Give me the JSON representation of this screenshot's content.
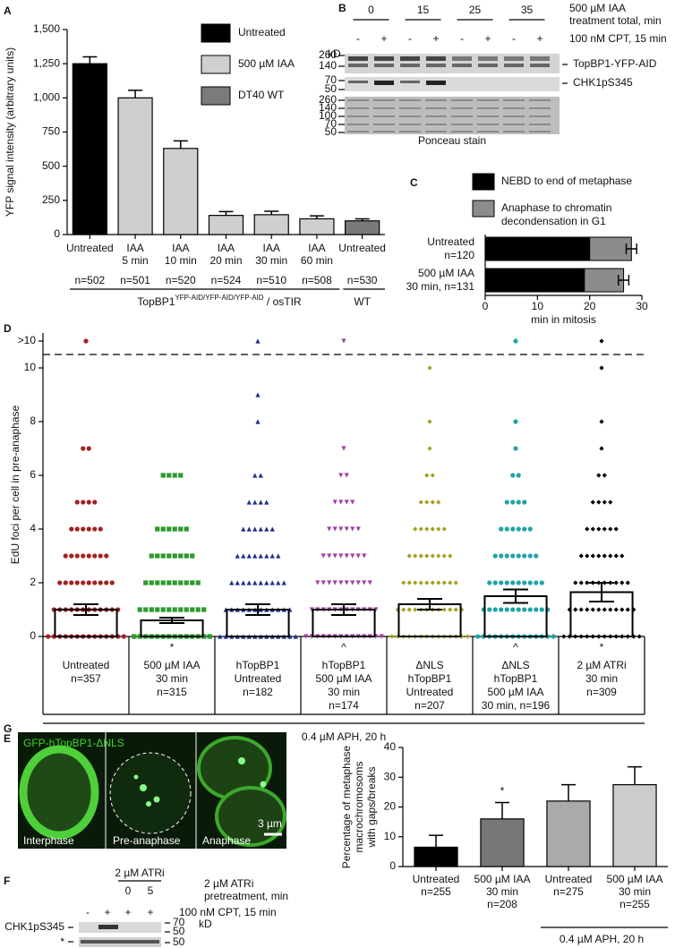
{
  "chart_data": [
    {
      "type": "bar",
      "panel": "A",
      "ylabel": "YFP signal intensity (arbitrary units)",
      "categories": [
        [
          "Untreated"
        ],
        [
          "IAA",
          "5 min"
        ],
        [
          "IAA",
          "10 min"
        ],
        [
          "IAA",
          "20 min"
        ],
        [
          "IAA",
          "30 min"
        ],
        [
          "IAA",
          "60 min"
        ],
        [
          "Untreated"
        ]
      ],
      "n_labels": [
        "n=502",
        "n=501",
        "n=520",
        "n=524",
        "n=510",
        "n=508",
        "n=530"
      ],
      "values": [
        1250,
        1000,
        630,
        140,
        145,
        115,
        100
      ],
      "errors": [
        50,
        55,
        55,
        28,
        25,
        22,
        15
      ],
      "colors": [
        "#000000",
        "#cfcfcf",
        "#cfcfcf",
        "#cfcfcf",
        "#cfcfcf",
        "#cfcfcf",
        "#7a7a7a"
      ],
      "legend": [
        {
          "name": "Untreated",
          "color": "#000000"
        },
        {
          "name": "500 µM IAA",
          "color": "#cfcfcf"
        },
        {
          "name": "DT40 WT",
          "color": "#7a7a7a"
        }
      ],
      "group_label": {
        "main": "TopBP1",
        "sup": "YFP-AID/YFP-AID/YFP-AID",
        "tail": " / osTIR",
        "wt": "WT"
      },
      "ylim": [
        0,
        1500
      ],
      "yticks": [
        0,
        250,
        500,
        750,
        {
          "value": 1000,
          "label": "1,000"
        },
        {
          "value": 1250,
          "label": "1,250"
        },
        {
          "value": 1500,
          "label": "1,500"
        }
      ]
    },
    {
      "type": "stacked-barh",
      "panel": "C",
      "categories": [
        [
          "Untreated",
          "n=120"
        ],
        [
          "500 µM IAA",
          "30 min, n=131"
        ]
      ],
      "series": [
        {
          "name": [
            "NEBD to end of metaphase"
          ],
          "color": "#000000",
          "values": [
            20,
            19
          ],
          "errors": [
            2.8,
            2.8
          ]
        },
        {
          "name": [
            "Anaphase to chromatin",
            "decondensation in G1"
          ],
          "color": "#8c8c8c",
          "values": [
            8,
            7.5
          ],
          "errors": [
            1,
            1
          ]
        }
      ],
      "xlim": [
        0,
        30
      ],
      "xticks": [
        0,
        10,
        20,
        30
      ],
      "xlabel": "min in mitosis"
    },
    {
      "type": "scatter-bar",
      "panel": "D",
      "ylabel": "EdU foci per cell in pre-anaphase",
      "categories": [
        [
          "Untreated",
          "n=357"
        ],
        [
          "500 µM IAA",
          "30 min",
          "n=315"
        ],
        [
          "hTopBP1",
          "Untreated",
          "n=182"
        ],
        [
          "hTopBP1",
          "500 µM IAA",
          "30 min",
          "n=174"
        ],
        [
          "ΔNLS",
          "hTopBP1",
          "Untreated",
          "n=207"
        ],
        [
          "ΔNLS",
          "hTopBP1",
          "500 µM IAA",
          "30 min, n=196"
        ],
        [
          "2 µM ATRi",
          "30 min",
          "n=309"
        ]
      ],
      "colors": [
        "#a3201f",
        "#2c9a2c",
        "#1f2e8c",
        "#a043a3",
        "#a3a020",
        "#22a3a6",
        "#000000"
      ],
      "markers": [
        "circle",
        "square",
        "triangle-up",
        "triangle-down",
        "diamond",
        "circle",
        "diamond"
      ],
      "means": [
        1.0,
        0.6,
        1.0,
        1.0,
        1.2,
        1.5,
        1.65
      ],
      "errors": [
        0.2,
        0.1,
        0.2,
        0.2,
        0.2,
        0.25,
        0.35
      ],
      "points": [
        [
          0,
          1,
          2,
          3,
          4,
          5,
          7,
          11
        ],
        [
          0,
          1,
          2,
          3,
          4,
          6
        ],
        [
          0,
          1,
          2,
          3,
          4,
          5,
          6,
          8,
          9,
          11
        ],
        [
          0,
          1,
          2,
          3,
          4,
          5,
          6,
          7,
          11
        ],
        [
          0,
          1,
          2,
          3,
          4,
          5,
          6,
          7,
          8,
          10
        ],
        [
          0,
          1,
          2,
          3,
          4,
          5,
          6,
          7,
          8,
          11
        ],
        [
          0,
          1,
          2,
          3,
          4,
          5,
          6,
          7,
          8,
          10,
          11
        ]
      ],
      "significance": [
        null,
        "*",
        null,
        "^",
        null,
        "^",
        "*"
      ],
      "break_line": 10.5,
      "footer": "0.4 µM APH, 20 h",
      "ylim": [
        0,
        11.3
      ],
      "yticks": [
        0,
        2,
        4,
        6,
        8,
        10,
        {
          "value": 11,
          "label": ">10"
        }
      ]
    },
    {
      "type": "bar",
      "panel": "G",
      "ylabel": [
        "Percentage of metaphase",
        "macrochromosoms",
        "with gaps/breaks"
      ],
      "categories": [
        [
          "Untreated",
          "n=255"
        ],
        [
          "500 µM IAA",
          "30 min",
          "n=208"
        ],
        [
          "Untreated",
          "n=275"
        ],
        [
          "500 µM IAA",
          "30 min",
          "n=255"
        ]
      ],
      "values": [
        6.5,
        16,
        22,
        27.5
      ],
      "errors": [
        4,
        5.5,
        5.5,
        6
      ],
      "colors": [
        "#000000",
        "#777777",
        "#aaaaaa",
        "#cccccc"
      ],
      "significance": [
        null,
        "*",
        null,
        null
      ],
      "footer": "0.4 µM APH, 20 h",
      "ylim": [
        0,
        40
      ],
      "yticks": [
        0,
        10,
        20,
        30,
        40
      ]
    }
  ],
  "panels": {
    "B": {
      "label": "B",
      "treatment": [
        "500 µM IAA",
        "treatment total, min"
      ],
      "timepoints": [
        "0",
        "15",
        "25",
        "35"
      ],
      "cpt_signs": [
        "-",
        "+",
        "-",
        "+",
        "-",
        "+",
        "-",
        "+"
      ],
      "cpt_label": "100 nM CPT, 15 min",
      "kd": "kD",
      "markers_top": [
        "260",
        "140"
      ],
      "markers_mid": [
        "70",
        "50"
      ],
      "markers_ponceau": [
        "260",
        "140",
        "100",
        "70",
        "50"
      ],
      "bands": [
        "TopBP1-YFP-AID",
        "CHK1pS345"
      ],
      "ponceau": "Ponceau stain"
    },
    "E": {
      "label": "E",
      "construct": "GFP-hTopBP1-ΔNLS",
      "phases": [
        "Interphase",
        "Pre-anaphase",
        "Anaphase"
      ],
      "scale": "3 µm"
    },
    "F": {
      "label": "F",
      "atri_label": "2 µM ATRi",
      "atri_pretreat": [
        "2 µM ATRi",
        "pretreatment, min"
      ],
      "times": [
        "0",
        "5"
      ],
      "signs": [
        "-",
        "+",
        "+",
        "+"
      ],
      "cpt_label": "100 nM CPT, 15 min",
      "band": "CHK1pS345",
      "nonspecific": "*",
      "markers": [
        "70",
        "50",
        "50"
      ],
      "kd": "kD"
    }
  }
}
